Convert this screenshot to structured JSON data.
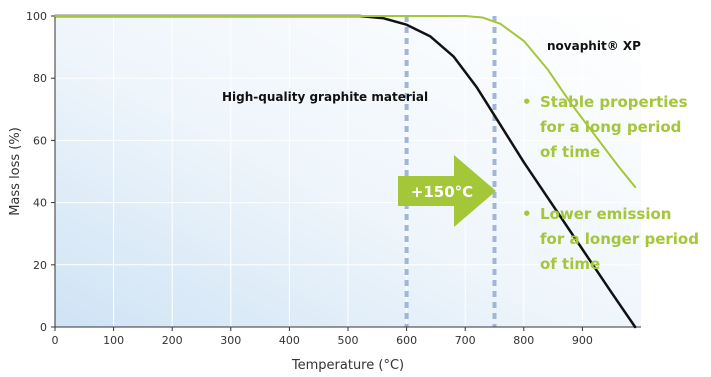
{
  "chart_data": {
    "type": "line",
    "xlabel": "Temperature (°C)",
    "ylabel": "Mass loss (%)",
    "xlim": [
      0,
      1000
    ],
    "ylim": [
      0,
      100
    ],
    "x_ticks": [
      0,
      100,
      200,
      300,
      400,
      500,
      600,
      700,
      800,
      900
    ],
    "y_ticks": [
      0,
      20,
      40,
      60,
      80,
      100
    ],
    "grid": true,
    "series": [
      {
        "name": "High-quality graphite material",
        "color": "#111111",
        "x": [
          0,
          520,
          560,
          600,
          640,
          680,
          720,
          760,
          800,
          850,
          900,
          950,
          990
        ],
        "y": [
          100,
          100,
          99.3,
          97.2,
          93.5,
          87,
          77,
          65,
          53,
          39,
          25,
          11,
          0
        ]
      },
      {
        "name": "novaphit® XP",
        "color": "#a4c639",
        "x": [
          0,
          700,
          730,
          760,
          800,
          840,
          880,
          920,
          960,
          990
        ],
        "y": [
          100,
          100,
          99.5,
          97.5,
          92,
          83,
          72,
          62,
          52,
          45
        ]
      }
    ],
    "markers": {
      "vertical_lines_x": [
        600,
        750
      ],
      "arrow_label": "+150°C"
    },
    "annotations": [
      {
        "bullet": "•",
        "lines": [
          "Stable properties",
          "for a long period",
          "of time"
        ]
      },
      {
        "bullet": "•",
        "lines": [
          "Lower emission",
          "for a longer period",
          "of time"
        ]
      }
    ],
    "colors": {
      "accent_green": "#a4c639",
      "dark_curve": "#111111",
      "marker_blue": "#9fb6d8",
      "background_gradient_start": "#dcebf8"
    }
  }
}
